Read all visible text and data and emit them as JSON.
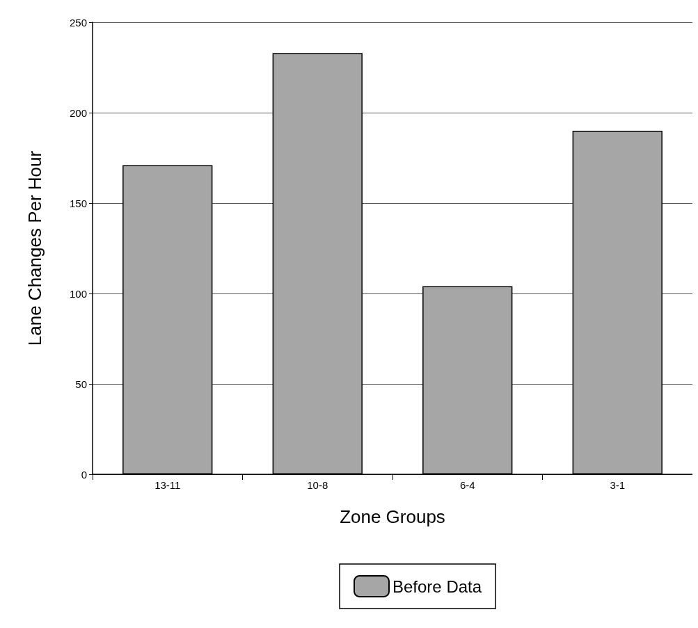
{
  "chart_data": {
    "type": "bar",
    "xlabel": "Zone Groups",
    "ylabel": "Lane Changes Per Hour",
    "categories": [
      "13-11",
      "10-8",
      "6-4",
      "3-1"
    ],
    "series": [
      {
        "name": "Before Data",
        "color": "#a6a6a6",
        "values": [
          171,
          233,
          104,
          190
        ]
      }
    ],
    "ylim": [
      0,
      250
    ],
    "yticks": [
      0,
      50,
      100,
      150,
      200,
      250
    ],
    "grid": "y",
    "legend": "bottom"
  }
}
